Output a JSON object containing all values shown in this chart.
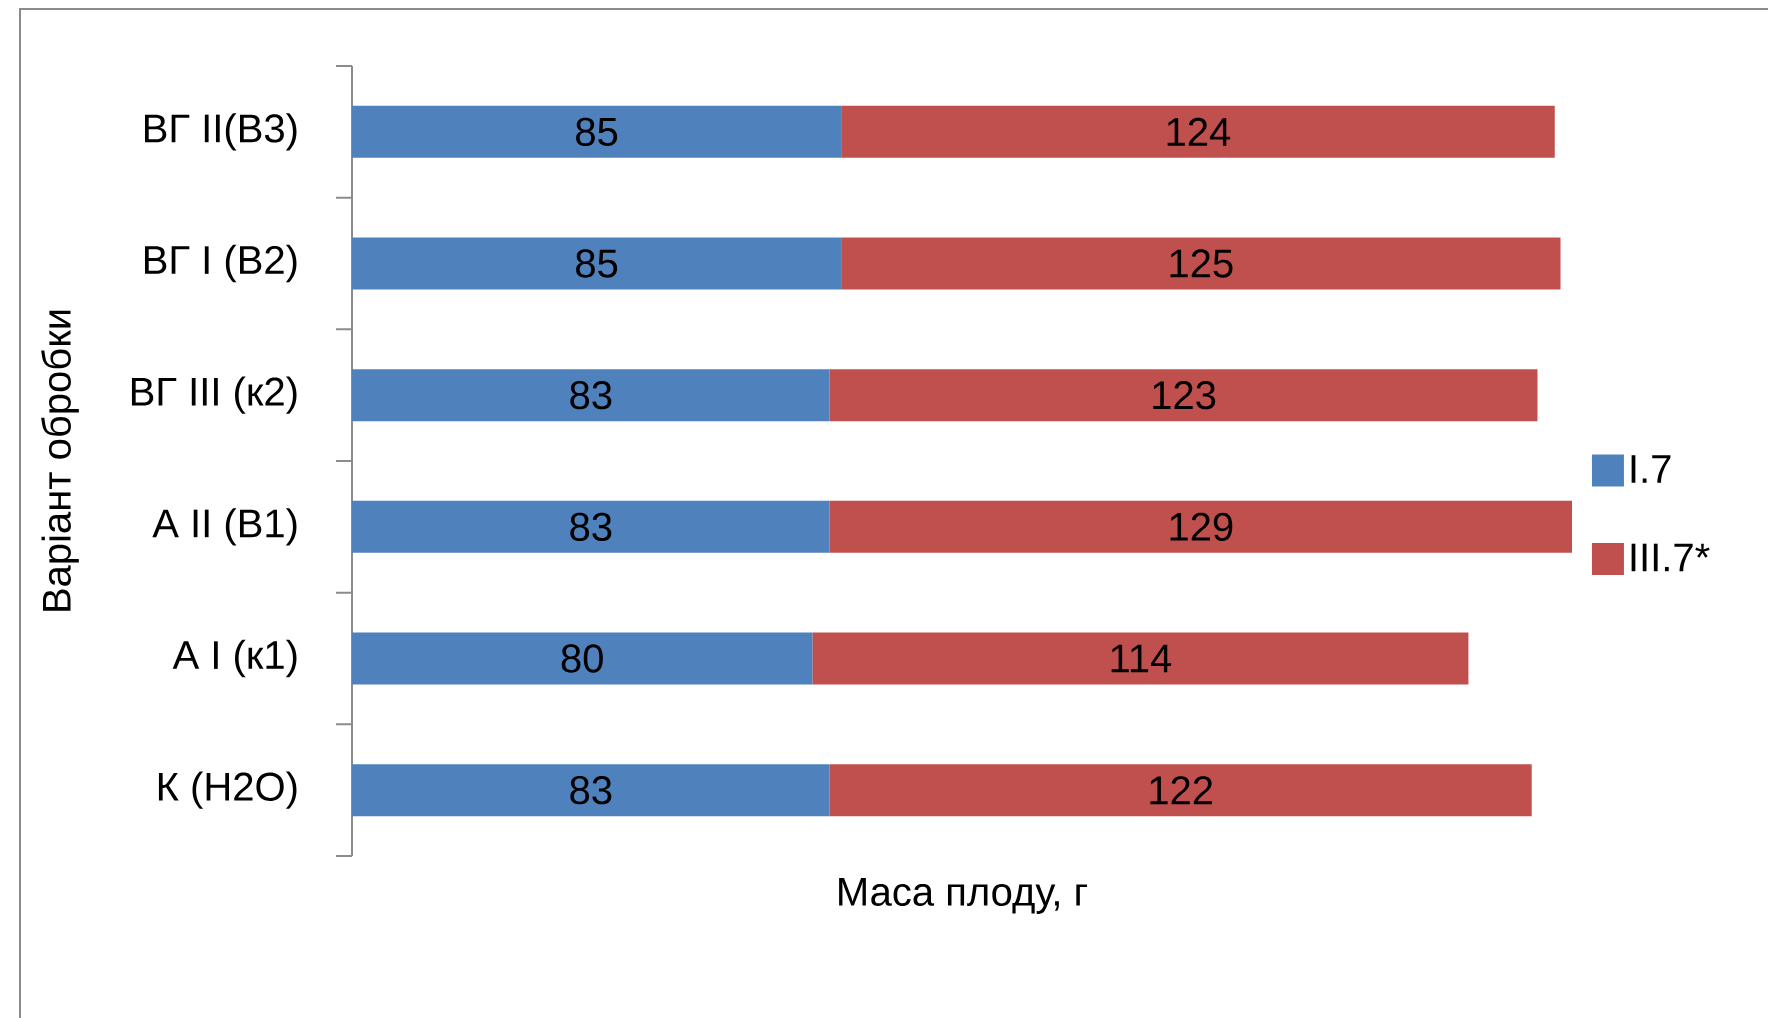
{
  "chart_data": {
    "type": "bar",
    "orientation": "horizontal",
    "stacked": true,
    "xlabel": "Маса плоду, г",
    "ylabel": "Варіант обробки",
    "categories": [
      "ВГ II(В3)",
      "ВГ I (В2)",
      "ВГ III (к2)",
      "А II (В1)",
      "А I (к1)",
      "К (Н2О)"
    ],
    "series": [
      {
        "name": "I.7",
        "color": "#4f81bd",
        "values": [
          85,
          85,
          83,
          83,
          80,
          83
        ]
      },
      {
        "name": "III.7*",
        "color": "#c0504d",
        "values": [
          124,
          125,
          123,
          129,
          114,
          122
        ]
      }
    ],
    "data_labels": true,
    "legend": "right",
    "tick_labels": "y"
  }
}
